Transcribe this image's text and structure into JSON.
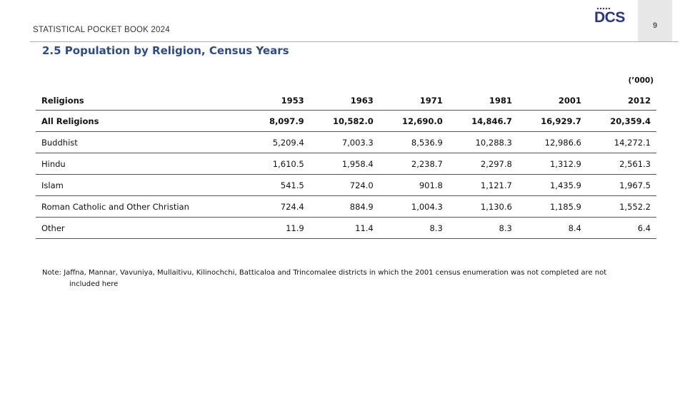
{
  "header": {
    "book_title": "STATISTICAL POCKET BOOK 2024",
    "logo_text": "DCS",
    "page_number": "9"
  },
  "section": {
    "title": "2.5 Population by Religion, Census Years",
    "units": "(’000)"
  },
  "table": {
    "columns": [
      "Religions",
      "1953",
      "1963",
      "1971",
      "1981",
      "2001",
      "2012"
    ],
    "rows": [
      {
        "label": "All Religions",
        "values": [
          "8,097.9",
          "10,582.0",
          "12,690.0",
          "14,846.7",
          "16,929.7",
          "20,359.4"
        ]
      },
      {
        "label": "Buddhist",
        "values": [
          "5,209.4",
          "7,003.3",
          "8,536.9",
          "10,288.3",
          "12,986.6",
          "14,272.1"
        ]
      },
      {
        "label": "Hindu",
        "values": [
          "1,610.5",
          "1,958.4",
          "2,238.7",
          "2,297.8",
          "1,312.9",
          "2,561.3"
        ]
      },
      {
        "label": "Islam",
        "values": [
          "541.5",
          "724.0",
          "901.8",
          "1,121.7",
          "1,435.9",
          "1,967.5"
        ]
      },
      {
        "label": "Roman Catholic and Other Christian",
        "values": [
          "724.4",
          "884.9",
          "1,004.3",
          "1,130.6",
          "1,185.9",
          "1,552.2"
        ]
      },
      {
        "label": "Other",
        "values": [
          "11.9",
          "11.4",
          "8.3",
          "8.3",
          "8.4",
          "6.4"
        ]
      }
    ]
  },
  "note": {
    "line1": "Note: Jaffna, Mannar, Vavuniya, Mullaitivu, Kilinochchi, Batticaloa  and Trincomalee districts in which the  2001 census enumeration  was not completed are not",
    "line2": "included here"
  },
  "colors": {
    "title": "#2c4a8e",
    "logo": "#27358b",
    "page_tab": "#e7e7e7"
  }
}
